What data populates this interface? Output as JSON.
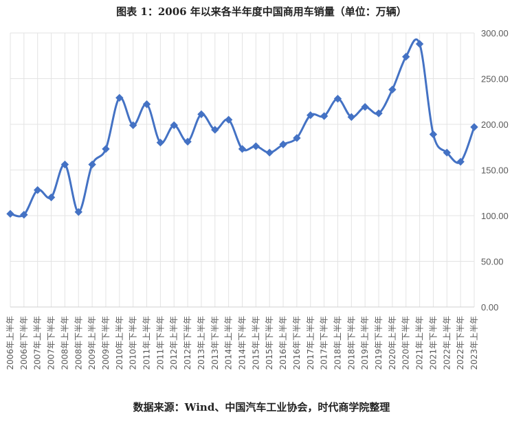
{
  "title": "图表 1：2006 年以来各半年度中国商用车销量（单位：万辆）",
  "source": "数据来源：Wind、中国汽车工业协会，时代商学院整理",
  "chart_data": {
    "type": "line",
    "title": "图表 1：2006 年以来各半年度中国商用车销量（单位：万辆）",
    "xlabel": "",
    "ylabel": "",
    "ylim": [
      0,
      300
    ],
    "yticks": [
      "0.00",
      "50.00",
      "100.00",
      "150.00",
      "200.00",
      "250.00",
      "300.00"
    ],
    "y_axis_side": "right",
    "grid": true,
    "line_color": "#4472C4",
    "marker": "diamond",
    "smooth": true,
    "categories": [
      "2006年上半年",
      "2006年下半年",
      "2007年上半年",
      "2007年下半年",
      "2008年上半年",
      "2008年下半年",
      "2009年上半年",
      "2009年下半年",
      "2010年上半年",
      "2010年下半年",
      "2011年上半年",
      "2011年下半年",
      "2012年上半年",
      "2012年下半年",
      "2013年上半年",
      "2013年下半年",
      "2014年上半年",
      "2014年下半年",
      "2015年上半年",
      "2015年下半年",
      "2016年上半年",
      "2016年下半年",
      "2017年上半年",
      "2017年下半年",
      "2018年上半年",
      "2018年下半年",
      "2019年上半年",
      "2019年下半年",
      "2020年上半年",
      "2020年下半年",
      "2021年上半年",
      "2021年下半年",
      "2022年上半年",
      "2022年下半年",
      "2023年上半年"
    ],
    "series": [
      {
        "values": [
          102,
          101,
          128,
          120,
          156,
          104,
          156,
          173,
          229,
          199,
          222,
          180,
          199,
          181,
          211,
          194,
          205,
          173,
          176,
          169,
          178,
          185,
          210,
          209,
          228,
          208,
          219,
          212,
          238,
          274,
          288,
          189,
          169,
          159,
          197
        ]
      }
    ]
  }
}
